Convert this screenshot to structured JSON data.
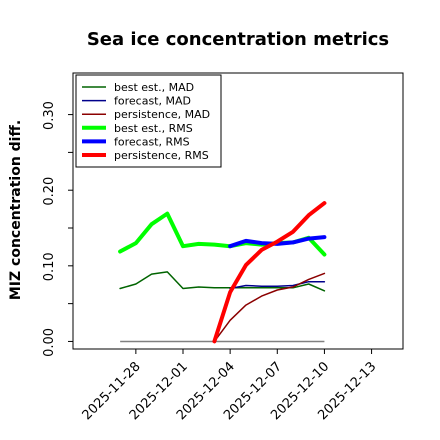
{
  "chart_data": {
    "type": "line",
    "title": "Sea ice concentration metrics",
    "ylabel": "MIZ concentration diff.",
    "xlabel": "",
    "ylim": [
      -0.01,
      0.355
    ],
    "xlim": [
      "2025-11-24",
      "2025-12-15"
    ],
    "yticks": [
      0.0,
      0.1,
      0.2,
      0.3
    ],
    "ytick_labels": [
      "0.00",
      "0.10",
      "0.20",
      "0.30"
    ],
    "xticks": [
      "2025-11-28",
      "2025-12-01",
      "2025-12-04",
      "2025-12-07",
      "2025-12-10",
      "2025-12-13"
    ],
    "highlighted_xtick": "2025-12-04",
    "highlight_color": "#008000",
    "grid": false,
    "legend_position": "top-left",
    "baseline": {
      "x": [
        "2025-11-27",
        "2025-12-10"
      ],
      "y": [
        0.0,
        0.0
      ],
      "color": "#808080"
    },
    "series": [
      {
        "name": "best est., MAD",
        "color": "#006400",
        "width": "thin",
        "x": [
          "2025-11-27",
          "2025-11-28",
          "2025-11-29",
          "2025-11-30",
          "2025-12-01",
          "2025-12-02",
          "2025-12-03",
          "2025-12-04",
          "2025-12-05",
          "2025-12-06",
          "2025-12-07",
          "2025-12-08",
          "2025-12-09",
          "2025-12-10"
        ],
        "y": [
          0.07,
          0.076,
          0.089,
          0.092,
          0.07,
          0.072,
          0.071,
          0.071,
          0.071,
          0.071,
          0.071,
          0.071,
          0.076,
          0.067
        ]
      },
      {
        "name": "forecast,  MAD",
        "color": "#00008b",
        "width": "thin",
        "x": [
          "2025-12-04",
          "2025-12-05",
          "2025-12-06",
          "2025-12-07",
          "2025-12-08",
          "2025-12-09",
          "2025-12-10"
        ],
        "y": [
          0.07,
          0.074,
          0.073,
          0.073,
          0.074,
          0.079,
          0.079
        ]
      },
      {
        "name": "persistence, MAD",
        "color": "#8b0000",
        "width": "thin",
        "x": [
          "2025-12-03",
          "2025-12-04",
          "2025-12-05",
          "2025-12-06",
          "2025-12-07",
          "2025-12-08",
          "2025-12-09",
          "2025-12-10"
        ],
        "y": [
          0.0,
          0.028,
          0.048,
          0.06,
          0.068,
          0.072,
          0.082,
          0.09
        ]
      },
      {
        "name": "best est., RMS",
        "color": "#00ff00",
        "width": "thick",
        "x": [
          "2025-11-27",
          "2025-11-28",
          "2025-11-29",
          "2025-11-30",
          "2025-12-01",
          "2025-12-02",
          "2025-12-03",
          "2025-12-04",
          "2025-12-05",
          "2025-12-06",
          "2025-12-07",
          "2025-12-08",
          "2025-12-09",
          "2025-12-10"
        ],
        "y": [
          0.119,
          0.13,
          0.155,
          0.169,
          0.126,
          0.129,
          0.128,
          0.126,
          0.13,
          0.128,
          0.13,
          0.131,
          0.137,
          0.115
        ]
      },
      {
        "name": "forecast,  RMS",
        "color": "#0000ff",
        "width": "thick",
        "x": [
          "2025-12-04",
          "2025-12-05",
          "2025-12-06",
          "2025-12-07",
          "2025-12-08",
          "2025-12-09",
          "2025-12-10"
        ],
        "y": [
          0.126,
          0.133,
          0.13,
          0.129,
          0.131,
          0.136,
          0.138
        ]
      },
      {
        "name": "persistence, RMS",
        "color": "#ff0000",
        "width": "thick",
        "x": [
          "2025-12-03",
          "2025-12-04",
          "2025-12-05",
          "2025-12-06",
          "2025-12-07",
          "2025-12-08",
          "2025-12-09",
          "2025-12-10"
        ],
        "y": [
          0.0,
          0.065,
          0.101,
          0.121,
          0.132,
          0.145,
          0.167,
          0.183
        ]
      }
    ]
  }
}
